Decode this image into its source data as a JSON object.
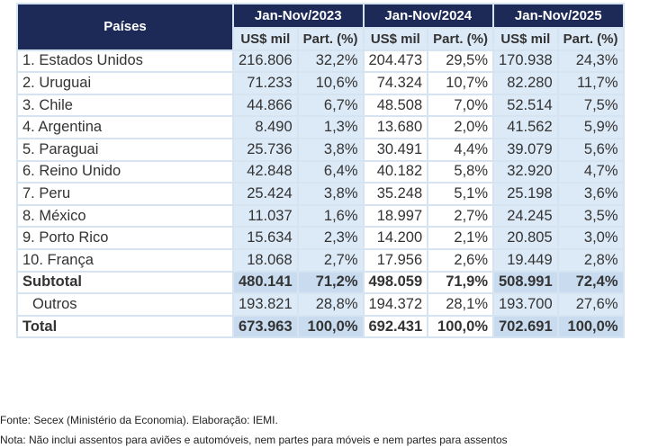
{
  "table": {
    "country_header": "Países",
    "periods": [
      "Jan-Nov/2023",
      "Jan-Nov/2024",
      "Jan-Nov/2025"
    ],
    "subheaders": [
      "US$ mil",
      "Part. (%)"
    ],
    "rows": [
      [
        "1. Estados Unidos",
        "216.806",
        "32,2%",
        "204.473",
        "29,5%",
        "170.938",
        "24,3%"
      ],
      [
        "2. Uruguai",
        "71.233",
        "10,6%",
        "74.324",
        "10,7%",
        "82.280",
        "11,7%"
      ],
      [
        "3. Chile",
        "44.866",
        "6,7%",
        "48.508",
        "7,0%",
        "52.514",
        "7,5%"
      ],
      [
        "4. Argentina",
        "8.490",
        "1,3%",
        "13.680",
        "2,0%",
        "41.562",
        "5,9%"
      ],
      [
        "5. Paraguai",
        "25.736",
        "3,8%",
        "30.491",
        "4,4%",
        "39.079",
        "5,6%"
      ],
      [
        "6. Reino Unido",
        "42.848",
        "6,4%",
        "40.182",
        "5,8%",
        "32.920",
        "4,7%"
      ],
      [
        "7. Peru",
        "25.424",
        "3,8%",
        "35.248",
        "5,1%",
        "25.198",
        "3,6%"
      ],
      [
        "8. México",
        "11.037",
        "1,6%",
        "18.997",
        "2,7%",
        "24.245",
        "3,5%"
      ],
      [
        "9. Porto Rico",
        "15.634",
        "2,3%",
        "14.200",
        "2,1%",
        "20.805",
        "3,0%"
      ],
      [
        "10. França",
        "18.068",
        "2,7%",
        "17.956",
        "2,6%",
        "19.449",
        "2,8%"
      ],
      [
        "Subtotal",
        "480.141",
        "71,2%",
        "498.059",
        "71,9%",
        "508.991",
        "72,4%"
      ],
      [
        "Outros",
        "193.821",
        "28,8%",
        "194.372",
        "28,1%",
        "193.700",
        "27,6%"
      ],
      [
        "Total",
        "673.963",
        "100,0%",
        "692.431",
        "100,0%",
        "702.691",
        "100,0%"
      ]
    ]
  },
  "footer": {
    "source": "Fonte: Secex (Ministério da Economia). Elaboração: IEMI.",
    "note": "Nota: Não inclui assentos para aviões e automóveis, nem partes para móveis e nem partes para assentos"
  }
}
